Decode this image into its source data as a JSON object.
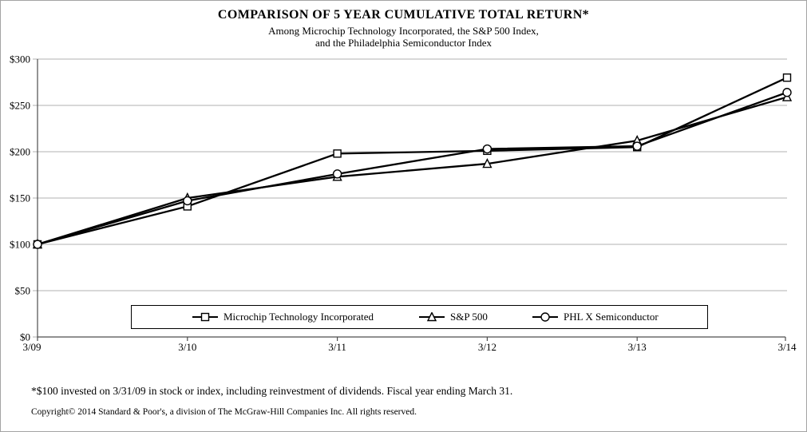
{
  "figure": {
    "title": "COMPARISON OF 5 YEAR CUMULATIVE  TOTAL RETURN*",
    "subtitle_line1": "Among Microchip Technology Incorporated, the S&P 500  Index,",
    "subtitle_line2": "and the Philadelphia  Semiconductor Index",
    "footnote": "*$100  invested on 3/31/09  in stock or index,  including reinvestment  of dividends.  Fiscal  year ending March 31.",
    "copyright": "Copyright© 2014 Standard & Poor's, a division of The McGraw-Hill Companies Inc. All rights reserved."
  },
  "chart_data": {
    "type": "line",
    "title": "COMPARISON OF 5 YEAR CUMULATIVE TOTAL RETURN*",
    "categories": [
      "3/09",
      "3/10",
      "3/11",
      "3/12",
      "3/13",
      "3/14"
    ],
    "series": [
      {
        "name": "Microchip Technology Incorporated",
        "marker": "square",
        "values": [
          100,
          141,
          198,
          201,
          205,
          280
        ]
      },
      {
        "name": "S&P 500",
        "marker": "triangle",
        "values": [
          100,
          150,
          173,
          187,
          212,
          259
        ]
      },
      {
        "name": "PHL X Semiconductor",
        "marker": "circle",
        "values": [
          100,
          147,
          176,
          203,
          206,
          264
        ]
      }
    ],
    "xlabel": "",
    "ylabel": "",
    "ylim": [
      0,
      300
    ],
    "y_tick_values": [
      0,
      50,
      100,
      150,
      200,
      250,
      300
    ],
    "y_tick_labels": [
      "$0",
      "$50",
      "$100",
      "$150",
      "$200",
      "$250",
      "$300"
    ],
    "grid": "horizontal",
    "legend_position": "bottom-box",
    "colors": {
      "line": "#000000",
      "marker_fill": "#ffffff",
      "grid": "#b0b0b0",
      "axis": "#4d4d4d",
      "text": "#000000",
      "figure_border": "#a3a3a3"
    }
  }
}
